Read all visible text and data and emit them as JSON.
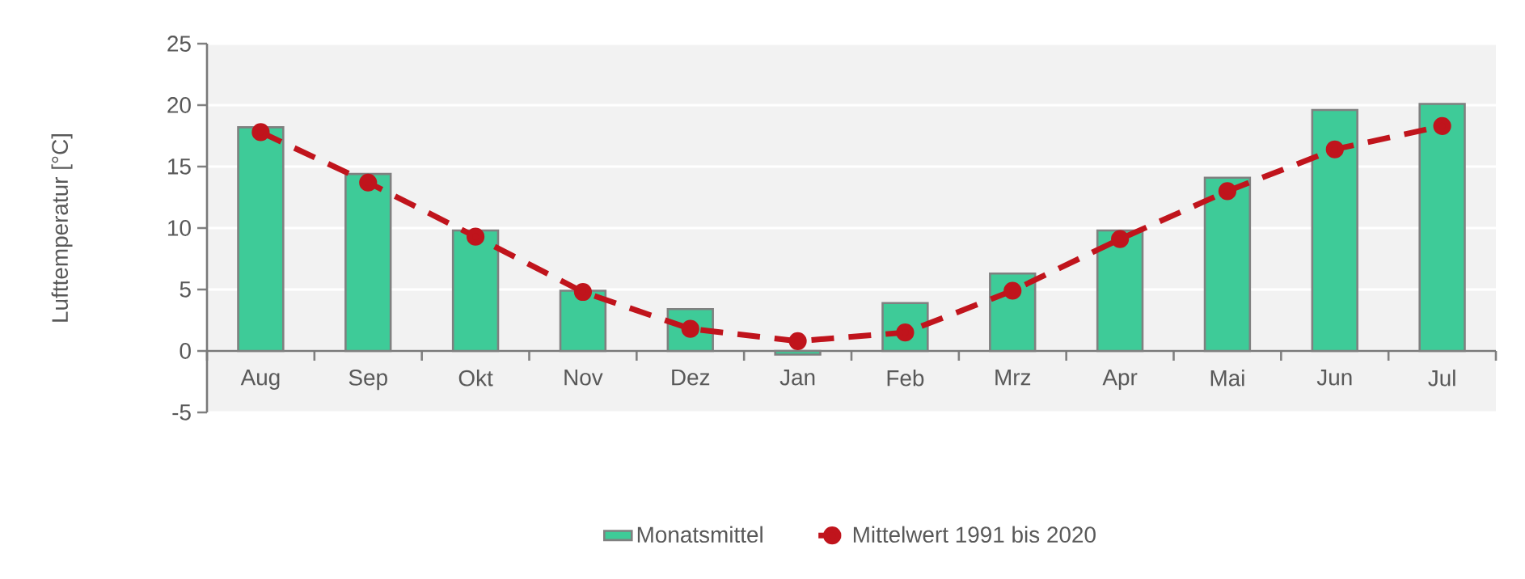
{
  "chart_data": {
    "type": "bar",
    "ylabel": "Lufttemperatur [°C]",
    "categories": [
      "Aug",
      "Sep",
      "Okt",
      "Nov",
      "Dez",
      "Jan",
      "Feb",
      "Mrz",
      "Apr",
      "Mai",
      "Jun",
      "Jul"
    ],
    "series": [
      {
        "name": "Monatsmittel",
        "color": "#3ecb98",
        "values": [
          18.2,
          14.4,
          9.8,
          4.9,
          3.4,
          -0.3,
          3.9,
          6.3,
          9.8,
          14.1,
          19.6,
          20.1
        ]
      },
      {
        "name": "Mittelwert 1991 bis 2020",
        "type": "line",
        "color": "#c0141c",
        "values": [
          17.8,
          13.7,
          9.3,
          4.8,
          1.8,
          0.8,
          1.5,
          4.9,
          9.1,
          13.0,
          16.4,
          18.3
        ]
      }
    ],
    "ylim": [
      -5,
      25
    ],
    "yticks": [
      -5,
      0,
      5,
      10,
      15,
      20,
      25
    ],
    "grid": "y",
    "legend": "bottom",
    "marker": "circle",
    "line_style": "dashed"
  }
}
